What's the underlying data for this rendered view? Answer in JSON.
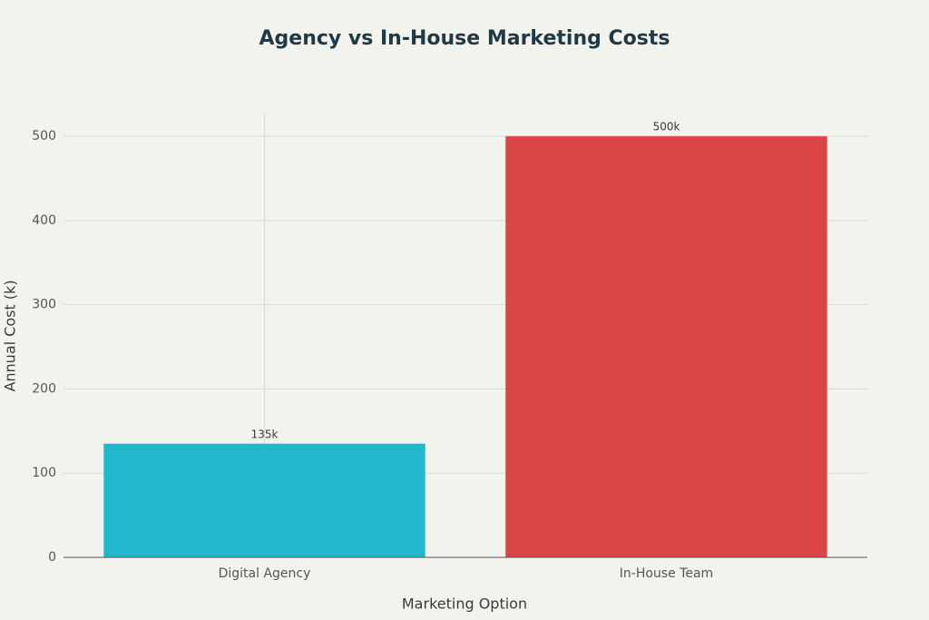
{
  "chart_data": {
    "type": "bar",
    "title": "Agency vs In-House Marketing Costs",
    "x_label": "Marketing Option",
    "y_label": "Annual Cost (k)",
    "categories": [
      "Digital Agency",
      "In-House Team"
    ],
    "values": [
      135,
      500
    ],
    "value_labels": [
      "135k",
      "500k"
    ],
    "colors": [
      "#21b8cd",
      "#db4546"
    ],
    "ylim": [
      0,
      526
    ],
    "yticks": [
      0,
      100,
      200,
      300,
      400,
      500
    ],
    "grid": true
  }
}
